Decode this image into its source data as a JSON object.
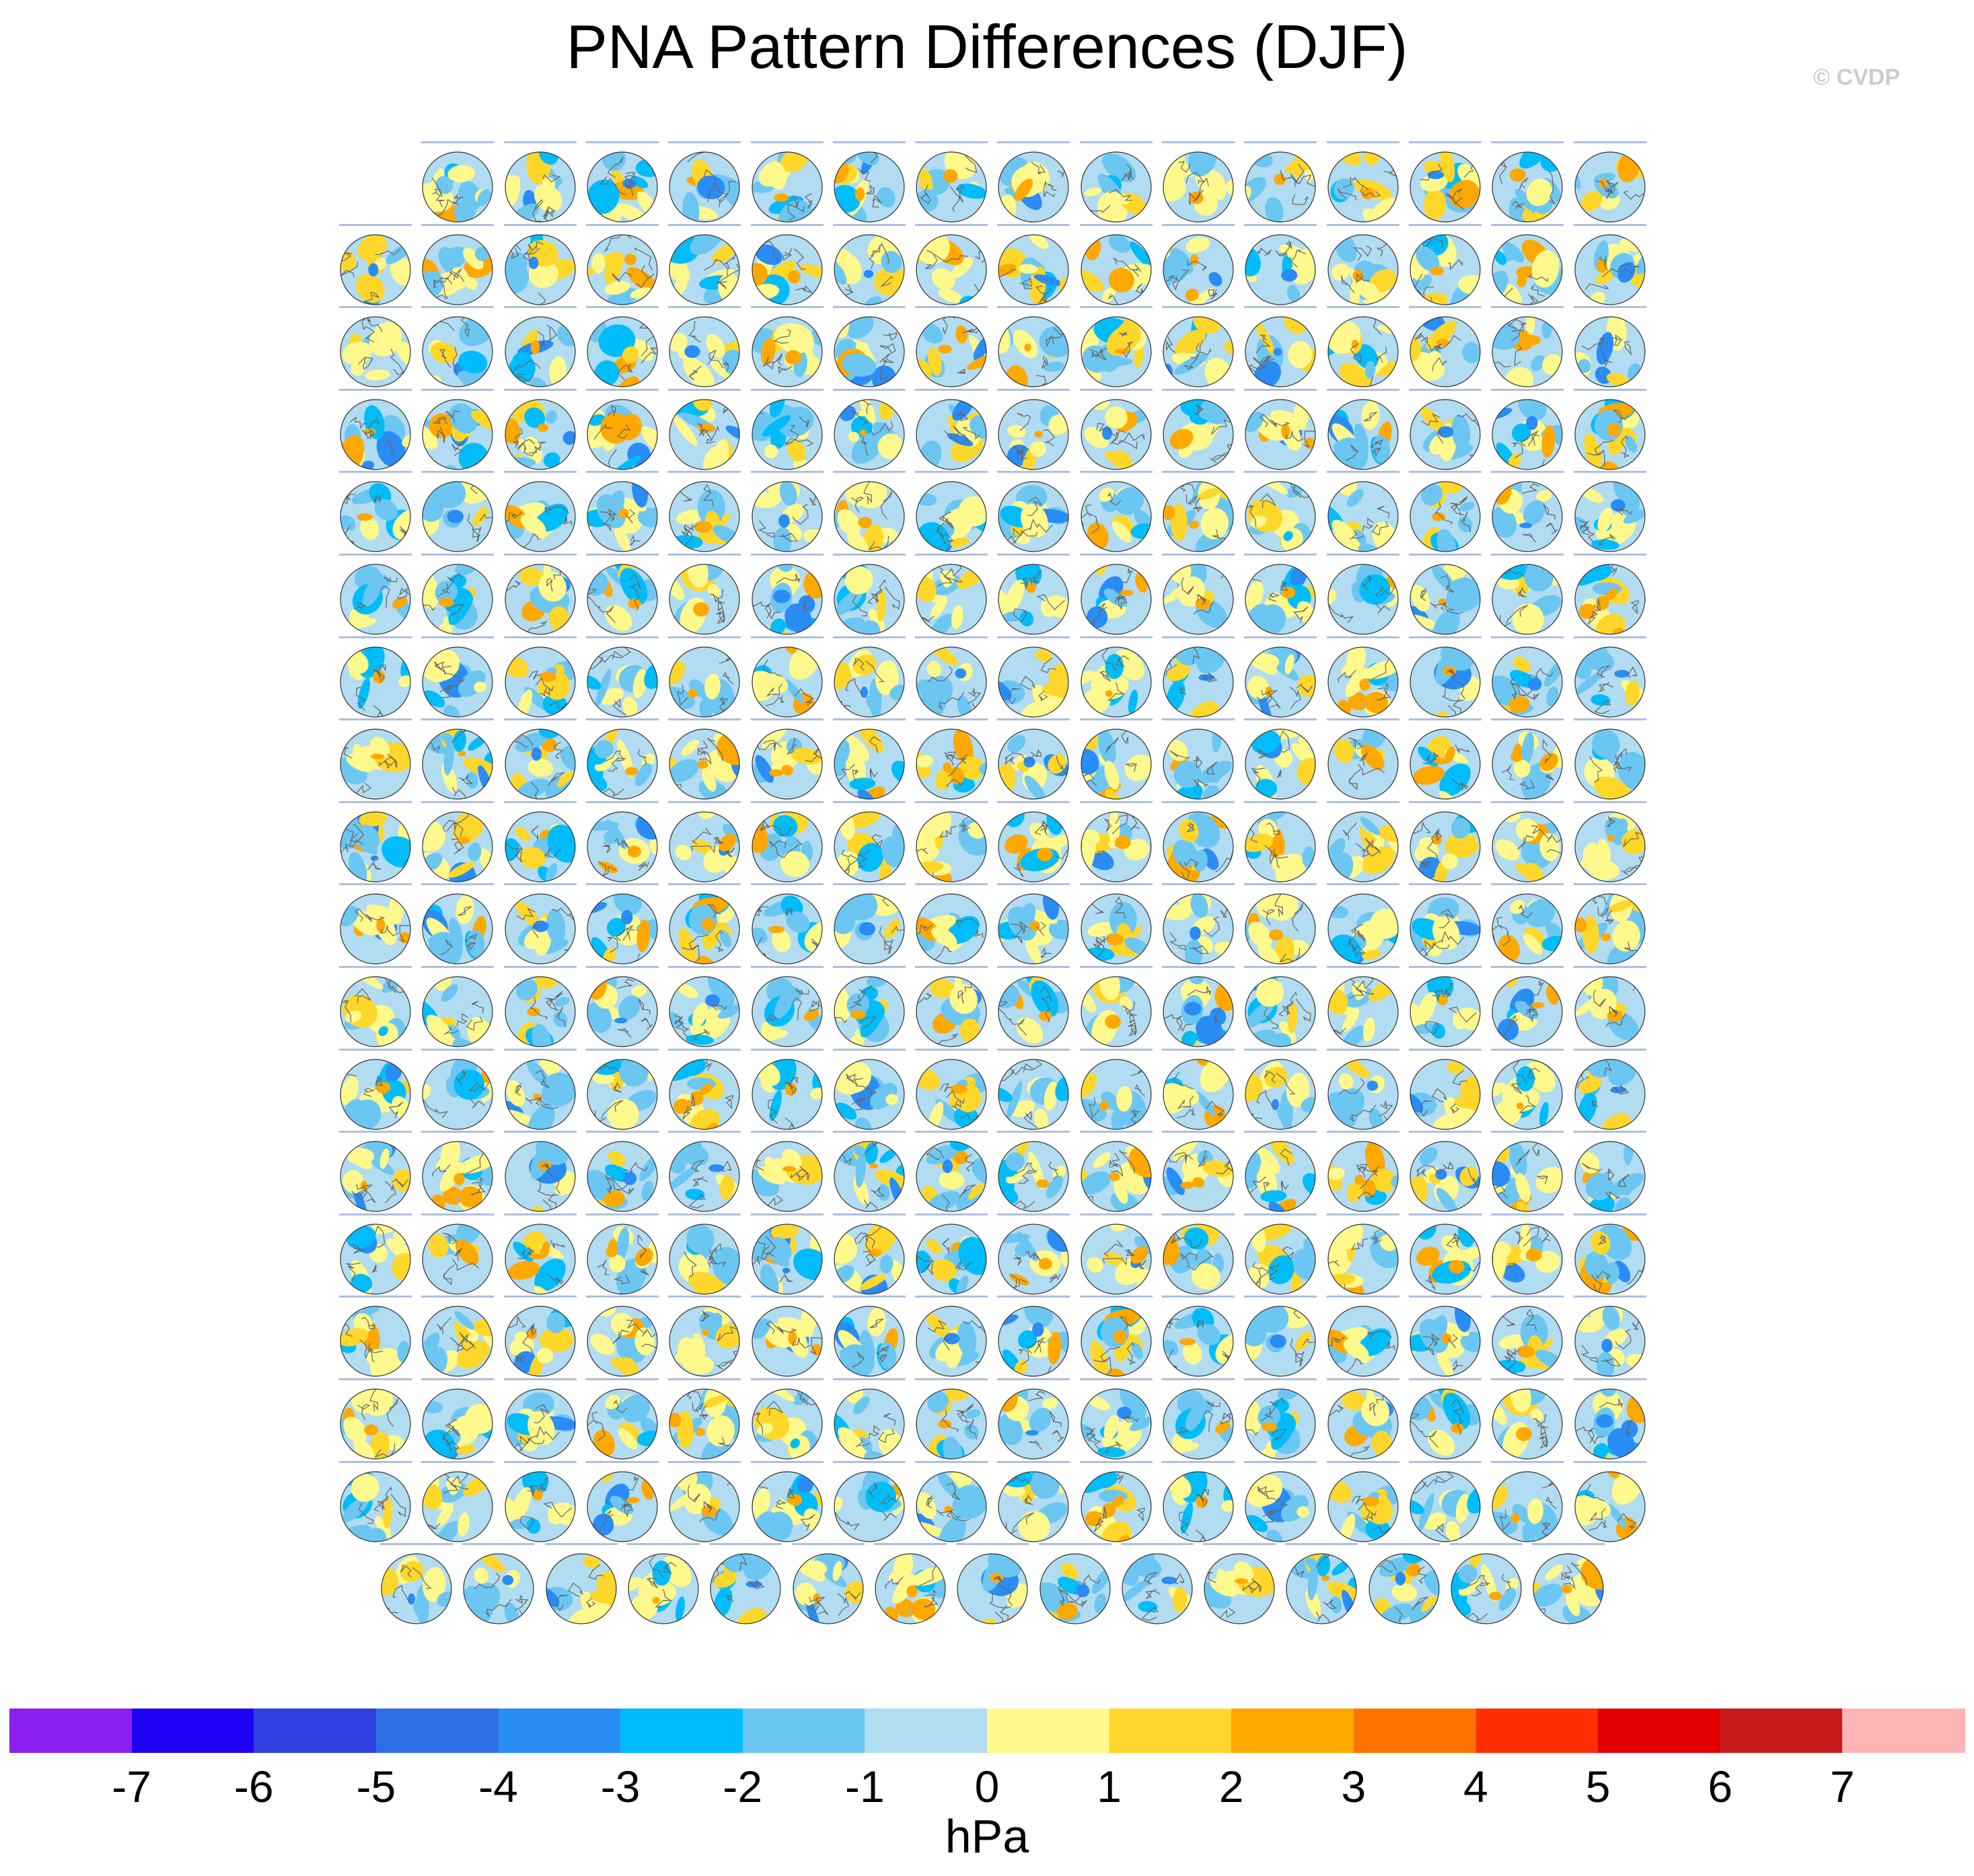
{
  "title": "PNA Pattern Differences (DJF)",
  "copyright": "© CVDP",
  "chart_data": {
    "type": "heatmap",
    "description_type": "panel grid of polar-stereographic sea level pressure difference maps",
    "panel_grid": {
      "rows": 18,
      "columns": 16,
      "row_counts": [
        15,
        16,
        16,
        16,
        16,
        16,
        16,
        16,
        16,
        16,
        16,
        16,
        16,
        16,
        16,
        16,
        16,
        15
      ],
      "row_alignment": [
        "right",
        "full",
        "full",
        "full",
        "full",
        "full",
        "full",
        "full",
        "full",
        "full",
        "full",
        "full",
        "full",
        "full",
        "full",
        "full",
        "full",
        "centered"
      ]
    },
    "colorbar": {
      "units": "hPa",
      "levels": [
        -7,
        -6,
        -5,
        -4,
        -3,
        -2,
        -1,
        0,
        1,
        2,
        3,
        4,
        5,
        6,
        7
      ],
      "colors": [
        "#8a20f0",
        "#1e00f5",
        "#2f3fe0",
        "#2f6fe6",
        "#2a8cf5",
        "#00bcfa",
        "#6cc6f2",
        "#b1dcf1",
        "#fff88c",
        "#ffd72a",
        "#ffa800",
        "#ff7300",
        "#ff2e00",
        "#e40000",
        "#c91b1b",
        "#ffb4b4"
      ]
    }
  },
  "colors": {
    "land_outline": "#666666",
    "map_border": "#333333"
  }
}
